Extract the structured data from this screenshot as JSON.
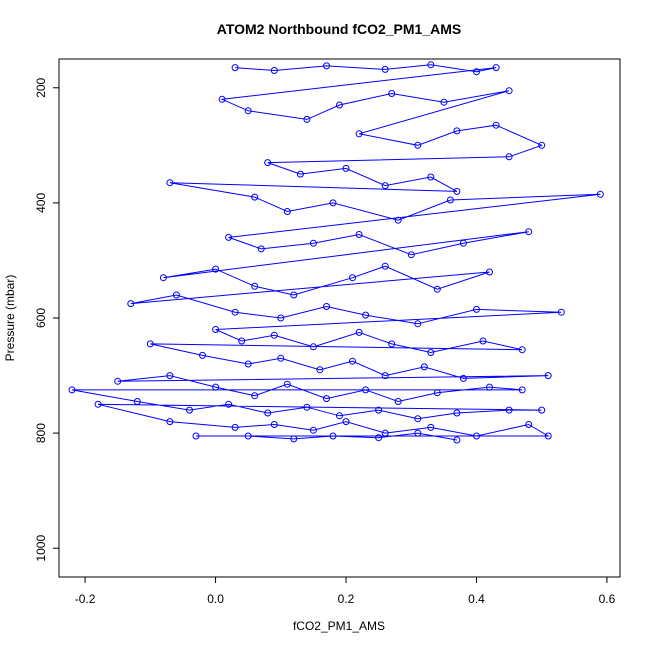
{
  "chart_data": {
    "type": "scatter",
    "title": "ATOM2 Northbound fCO2_PM1_AMS",
    "xlabel": "fCO2_PM1_AMS",
    "ylabel": "Pressure (mbar)",
    "xlim": [
      -0.24,
      0.62
    ],
    "ylim": [
      1050,
      150
    ],
    "y_reversed": true,
    "x_ticks": [
      -0.2,
      0.0,
      0.2,
      0.4,
      0.6
    ],
    "x_tick_labels": [
      "-0.2",
      "0.0",
      "0.2",
      "0.4",
      "0.6"
    ],
    "y_ticks": [
      200,
      400,
      600,
      800,
      1000
    ],
    "y_tick_labels": [
      "200",
      "400",
      "600",
      "800",
      "1000"
    ],
    "marker": "open-circle",
    "connected": true,
    "grid": false,
    "legend": "none",
    "color": "#0000ff",
    "series": [
      {
        "points": [
          [
            0.03,
            165
          ],
          [
            0.09,
            170
          ],
          [
            0.17,
            162
          ],
          [
            0.26,
            168
          ],
          [
            0.33,
            160
          ],
          [
            0.4,
            172
          ],
          [
            0.43,
            165
          ],
          [
            0.01,
            220
          ],
          [
            0.05,
            240
          ],
          [
            0.14,
            255
          ],
          [
            0.19,
            230
          ],
          [
            0.27,
            210
          ],
          [
            0.35,
            225
          ],
          [
            0.45,
            205
          ],
          [
            0.22,
            280
          ],
          [
            0.31,
            300
          ],
          [
            0.37,
            275
          ],
          [
            0.43,
            265
          ],
          [
            0.5,
            300
          ],
          [
            0.45,
            320
          ],
          [
            0.08,
            330
          ],
          [
            0.13,
            350
          ],
          [
            0.2,
            340
          ],
          [
            0.26,
            370
          ],
          [
            0.33,
            355
          ],
          [
            0.37,
            380
          ],
          [
            -0.07,
            365
          ],
          [
            0.06,
            390
          ],
          [
            0.11,
            415
          ],
          [
            0.18,
            400
          ],
          [
            0.28,
            430
          ],
          [
            0.36,
            395
          ],
          [
            0.59,
            385
          ],
          [
            0.02,
            460
          ],
          [
            0.07,
            480
          ],
          [
            0.15,
            470
          ],
          [
            0.22,
            455
          ],
          [
            0.3,
            490
          ],
          [
            0.38,
            470
          ],
          [
            0.48,
            450
          ],
          [
            -0.08,
            530
          ],
          [
            0.0,
            515
          ],
          [
            0.06,
            545
          ],
          [
            0.12,
            560
          ],
          [
            0.21,
            530
          ],
          [
            0.26,
            510
          ],
          [
            0.34,
            550
          ],
          [
            0.42,
            520
          ],
          [
            -0.13,
            575
          ],
          [
            -0.06,
            560
          ],
          [
            0.03,
            590
          ],
          [
            0.1,
            600
          ],
          [
            0.17,
            580
          ],
          [
            0.23,
            595
          ],
          [
            0.31,
            610
          ],
          [
            0.4,
            585
          ],
          [
            0.53,
            590
          ],
          [
            0.0,
            620
          ],
          [
            0.04,
            640
          ],
          [
            0.09,
            630
          ],
          [
            0.15,
            650
          ],
          [
            0.22,
            625
          ],
          [
            0.27,
            645
          ],
          [
            0.33,
            660
          ],
          [
            0.41,
            640
          ],
          [
            0.47,
            655
          ],
          [
            -0.1,
            645
          ],
          [
            -0.02,
            665
          ],
          [
            0.05,
            680
          ],
          [
            0.1,
            670
          ],
          [
            0.16,
            690
          ],
          [
            0.21,
            675
          ],
          [
            0.26,
            700
          ],
          [
            0.32,
            685
          ],
          [
            0.38,
            705
          ],
          [
            0.51,
            700
          ],
          [
            -0.15,
            710
          ],
          [
            -0.07,
            700
          ],
          [
            0.0,
            720
          ],
          [
            0.06,
            735
          ],
          [
            0.11,
            715
          ],
          [
            0.17,
            740
          ],
          [
            0.23,
            725
          ],
          [
            0.28,
            745
          ],
          [
            0.34,
            730
          ],
          [
            0.42,
            720
          ],
          [
            0.47,
            725
          ],
          [
            -0.22,
            725
          ],
          [
            -0.12,
            745
          ],
          [
            -0.04,
            760
          ],
          [
            0.02,
            750
          ],
          [
            0.08,
            765
          ],
          [
            0.14,
            755
          ],
          [
            0.19,
            770
          ],
          [
            0.25,
            760
          ],
          [
            0.31,
            775
          ],
          [
            0.37,
            765
          ],
          [
            0.45,
            760
          ],
          [
            0.5,
            760
          ],
          [
            -0.18,
            750
          ],
          [
            -0.07,
            780
          ],
          [
            0.03,
            790
          ],
          [
            0.09,
            785
          ],
          [
            0.15,
            795
          ],
          [
            0.2,
            780
          ],
          [
            0.26,
            800
          ],
          [
            0.33,
            790
          ],
          [
            0.4,
            805
          ],
          [
            0.48,
            785
          ],
          [
            0.51,
            805
          ],
          [
            -0.03,
            805
          ],
          [
            0.05,
            805
          ],
          [
            0.12,
            810
          ],
          [
            0.18,
            805
          ],
          [
            0.25,
            808
          ],
          [
            0.31,
            800
          ],
          [
            0.37,
            812
          ]
        ]
      }
    ]
  }
}
